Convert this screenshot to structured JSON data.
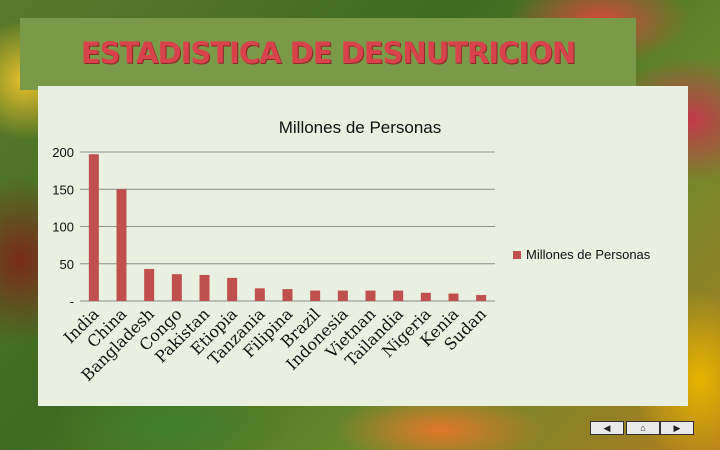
{
  "slide": {
    "title": "ESTADISTICA DE DESNUTRICION",
    "colors": {
      "title": "#d8424a",
      "bar": "#c0504d",
      "panel": "#eaf0e0",
      "title_band": "#7a9a4a"
    }
  },
  "navigation": {
    "prev_icon": "triangle-left",
    "home_icon": "home",
    "next_icon": "triangle-right",
    "prev_glyph": "◀",
    "home_glyph": "⌂",
    "next_glyph": "▶"
  },
  "chart_data": {
    "type": "bar",
    "title": "Millones de Personas",
    "categories": [
      "India",
      "China",
      "Bangladesh",
      "Congo",
      "Pakistan",
      "Etiopia",
      "Tanzania",
      "Filipina",
      "Brazil",
      "Indonesia",
      "Vietnan",
      "Tailandia",
      "Nigeria",
      "Kenia",
      "Sudan"
    ],
    "series": [
      {
        "name": "Millones de Personas",
        "values": [
          197,
          150,
          43,
          36,
          35,
          31,
          17,
          16,
          14,
          14,
          14,
          14,
          11,
          10,
          8
        ]
      }
    ],
    "y_ticks": [
      "-",
      "50",
      "100",
      "150",
      "200"
    ],
    "ylim": [
      0,
      200
    ],
    "grid": true,
    "legend_position": "right"
  }
}
